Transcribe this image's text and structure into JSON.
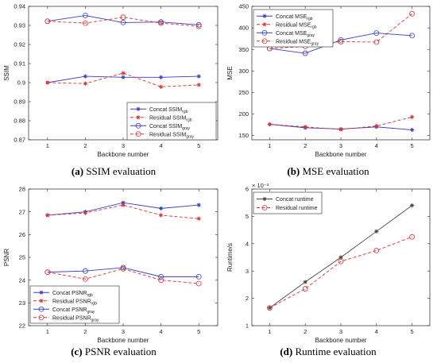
{
  "figure": {
    "panels": [
      {
        "letter": "(a)",
        "caption": " SSIM evaluation",
        "chart_data": {
          "type": "line",
          "title": "",
          "xlabel": "Backbone number",
          "ylabel": "SSIM",
          "x": [
            1,
            2,
            3,
            4,
            5
          ],
          "xlim": [
            0.5,
            5.5
          ],
          "ylim": [
            0.87,
            0.94
          ],
          "yticks": [
            0.87,
            0.88,
            0.89,
            0.9,
            0.91,
            0.92,
            0.93,
            0.94
          ],
          "ytick_labels": [
            "0.87",
            "0.88",
            "0.89",
            "0.9",
            "0.91",
            "0.92",
            "0.93",
            "0.94"
          ],
          "legend_position": "bottom-right",
          "series": [
            {
              "name": "Concat SSIM",
              "sub": "rgb",
              "color": "#3b3bc0",
              "dashed": false,
              "marker": "star",
              "values": [
                0.9,
                0.9033,
                0.9028,
                0.9028,
                0.9033
              ]
            },
            {
              "name": "Residual SSIM",
              "sub": "rgb",
              "color": "#d93434",
              "dashed": true,
              "marker": "star",
              "values": [
                0.9,
                0.8995,
                0.905,
                0.8978,
                0.8988
              ]
            },
            {
              "name": "Concat SSIM",
              "sub": "gray",
              "color": "#3b3bc0",
              "dashed": false,
              "marker": "circle",
              "values": [
                0.9322,
                0.9352,
                0.9315,
                0.9318,
                0.9303
              ]
            },
            {
              "name": "Residual SSIM",
              "sub": "gray",
              "color": "#d93434",
              "dashed": true,
              "marker": "circle",
              "values": [
                0.9322,
                0.9312,
                0.9343,
                0.9312,
                0.9295
              ]
            }
          ]
        }
      },
      {
        "letter": "(b)",
        "caption": " MSE evaluation",
        "chart_data": {
          "type": "line",
          "title": "",
          "xlabel": "Backbone number",
          "ylabel": "MSE",
          "x": [
            1,
            2,
            3,
            4,
            5
          ],
          "xlim": [
            0.5,
            5.5
          ],
          "ylim": [
            140,
            450
          ],
          "yticks": [
            150,
            200,
            250,
            300,
            350,
            400,
            450
          ],
          "ytick_labels": [
            "150",
            "200",
            "250",
            "300",
            "350",
            "400",
            "450"
          ],
          "legend_position": "top-left",
          "series": [
            {
              "name": "Concat MSE",
              "sub": "rgb",
              "color": "#3b3bc0",
              "dashed": false,
              "marker": "star",
              "values": [
                176,
                168,
                165,
                170,
                163
              ]
            },
            {
              "name": "Residual MSE",
              "sub": "rgb",
              "color": "#d93434",
              "dashed": true,
              "marker": "star",
              "values": [
                176,
                170,
                164,
                172,
                193
              ]
            },
            {
              "name": "Concat MSE",
              "sub": "gray",
              "color": "#3b3bc0",
              "dashed": false,
              "marker": "circle",
              "values": [
                352,
                341,
                372,
                388,
                382
              ]
            },
            {
              "name": "Residual MSE",
              "sub": "gray",
              "color": "#d93434",
              "dashed": true,
              "marker": "circle",
              "values": [
                352,
                357,
                368,
                367,
                433
              ]
            }
          ]
        }
      },
      {
        "letter": "(c)",
        "caption": " PSNR evaluation",
        "chart_data": {
          "type": "line",
          "title": "",
          "xlabel": "Backbone number",
          "ylabel": "PSNR",
          "x": [
            1,
            2,
            3,
            4,
            5
          ],
          "xlim": [
            0.5,
            5.5
          ],
          "ylim": [
            22,
            28
          ],
          "yticks": [
            22,
            23,
            24,
            25,
            26,
            27,
            28
          ],
          "ytick_labels": [
            "22",
            "23",
            "24",
            "25",
            "26",
            "27",
            "28"
          ],
          "legend_position": "bottom-left",
          "series": [
            {
              "name": "Concat PSNR",
              "sub": "rgb",
              "color": "#3b3bc0",
              "dashed": false,
              "marker": "star",
              "values": [
                26.85,
                27.0,
                27.4,
                27.15,
                27.3
              ]
            },
            {
              "name": "Residual PSNR",
              "sub": "rgb",
              "color": "#d93434",
              "dashed": true,
              "marker": "star",
              "values": [
                26.85,
                26.95,
                27.3,
                26.85,
                26.7
              ]
            },
            {
              "name": "Concat PSNR",
              "sub": "gray",
              "color": "#3b3bc0",
              "dashed": false,
              "marker": "circle",
              "values": [
                24.35,
                24.4,
                24.55,
                24.15,
                24.15
              ]
            },
            {
              "name": "Residual PSNR",
              "sub": "gray",
              "color": "#d93434",
              "dashed": true,
              "marker": "circle",
              "values": [
                24.35,
                24.05,
                24.5,
                24.0,
                23.85
              ]
            }
          ]
        }
      },
      {
        "letter": "(d)",
        "caption": " Runtime evaluation",
        "chart_data": {
          "type": "line",
          "title": "",
          "xlabel": "Backbone number",
          "ylabel": "Runtime/s",
          "y_exponent_label": "× 10⁻³",
          "x": [
            1,
            2,
            3,
            4,
            5
          ],
          "xlim": [
            0.5,
            5.5
          ],
          "ylim": [
            1,
            6
          ],
          "yticks": [
            1,
            2,
            3,
            4,
            5,
            6
          ],
          "ytick_labels": [
            "1",
            "2",
            "3",
            "4",
            "5",
            "6"
          ],
          "legend_position": "top-left",
          "series": [
            {
              "name": "Concat runtime",
              "sub": "",
              "color": "#444444",
              "dashed": false,
              "marker": "star",
              "values": [
                1.65,
                2.6,
                3.5,
                4.45,
                5.4
              ]
            },
            {
              "name": "Residual runtime",
              "sub": "",
              "color": "#d93434",
              "dashed": true,
              "marker": "circle",
              "values": [
                1.65,
                2.35,
                3.35,
                3.75,
                4.25
              ]
            }
          ]
        }
      }
    ]
  }
}
